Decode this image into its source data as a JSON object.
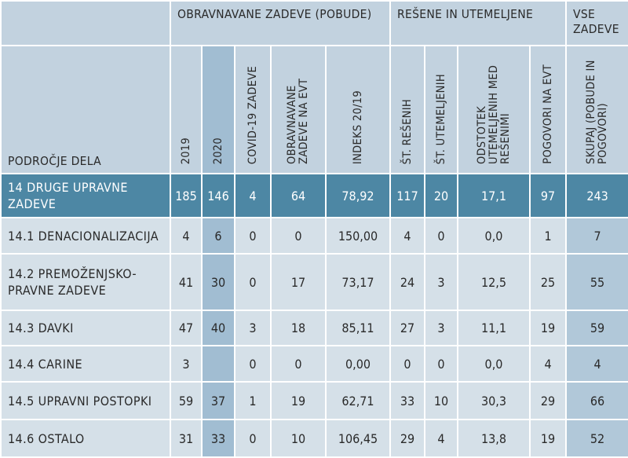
{
  "groups": {
    "obravnavane": "OBRAVNAVANE ZADEVE (POBUDE)",
    "resene": "REŠENE IN UTEMELJENE",
    "vse": "VSE ZADEVE"
  },
  "columns": {
    "area": "PODROČJE DELA",
    "y2019": "2019",
    "y2020": "2020",
    "covid": "COVID-19 ZADEVE",
    "evt": "OBRAVNAVANE ZADEVE NA EVT",
    "index": "INDEKS 20/19",
    "solved": "ŠT. REŠENIH",
    "justified": "ŠT. UTEMELJENIH",
    "share": "ODSTOTEK UTEMELJENIH MED REŠENIMI",
    "talks": "POGOVORI NA EVT",
    "total": "SKUPAJ (POBUDE IN POGOVORI)"
  },
  "rows": [
    {
      "label": "14  DRUGE UPRAVNE ZADEVE",
      "v2019": "185",
      "v2020": "146",
      "covid": "4",
      "evt": "64",
      "index": "78,92",
      "solved": "117",
      "justified": "20",
      "share": "17,1",
      "talks": "97",
      "total": "243"
    },
    {
      "label": "14.1  DENACIONALIZACIJA",
      "v2019": "4",
      "v2020": "6",
      "covid": "0",
      "evt": "0",
      "index": "150,00",
      "solved": "4",
      "justified": "0",
      "share": "0,0",
      "talks": "1",
      "total": "7"
    },
    {
      "label": "14.2  PREMOŽENJSKO-PRAVNE ZADEVE",
      "v2019": "41",
      "v2020": "30",
      "covid": "0",
      "evt": "17",
      "index": "73,17",
      "solved": "24",
      "justified": "3",
      "share": "12,5",
      "talks": "25",
      "total": "55"
    },
    {
      "label": "14.3  DAVKI",
      "v2019": "47",
      "v2020": "40",
      "covid": "3",
      "evt": "18",
      "index": "85,11",
      "solved": "27",
      "justified": "3",
      "share": "11,1",
      "talks": "19",
      "total": "59"
    },
    {
      "label": "14.4  CARINE",
      "v2019": "3",
      "v2020": "",
      "covid": "0",
      "evt": "0",
      "index": "0,00",
      "solved": "0",
      "justified": "0",
      "share": "0,0",
      "talks": "4",
      "total": "4"
    },
    {
      "label": "14.5  UPRAVNI POSTOPKI",
      "v2019": "59",
      "v2020": "37",
      "covid": "1",
      "evt": "19",
      "index": "62,71",
      "solved": "33",
      "justified": "10",
      "share": "30,3",
      "talks": "29",
      "total": "66"
    },
    {
      "label": "14.6 OSTALO",
      "v2019": "31",
      "v2020": "33",
      "covid": "0",
      "evt": "10",
      "index": "106,45",
      "solved": "29",
      "justified": "4",
      "share": "13,8",
      "talks": "19",
      "total": "52"
    }
  ],
  "colors": {
    "header_bg": "#c2d2df",
    "highlight_2020": "#a1bdd2",
    "main_row_bg": "#4d87a4",
    "sub_row_bg": "#d5e0e8",
    "total_col_bg": "#b1c8d9"
  }
}
